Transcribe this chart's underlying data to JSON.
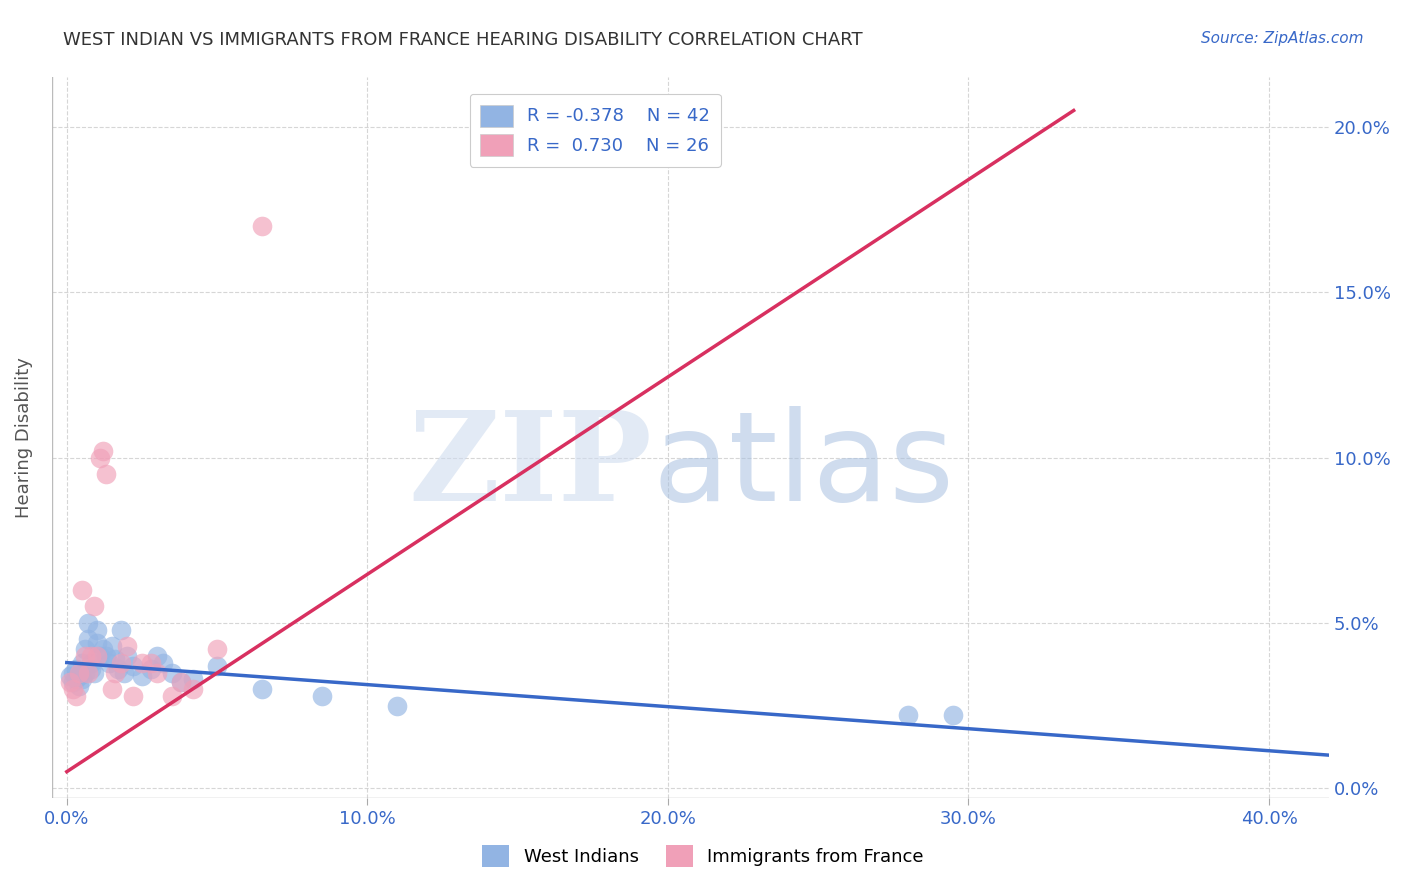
{
  "title": "WEST INDIAN VS IMMIGRANTS FROM FRANCE HEARING DISABILITY CORRELATION CHART",
  "source": "Source: ZipAtlas.com",
  "ylabel": "Hearing Disability",
  "x_tick_labels": [
    "0.0%",
    "10.0%",
    "20.0%",
    "30.0%",
    "40.0%"
  ],
  "x_tick_values": [
    0.0,
    0.1,
    0.2,
    0.3,
    0.4
  ],
  "y_tick_labels_right": [
    "0.0%",
    "5.0%",
    "10.0%",
    "15.0%",
    "20.0%"
  ],
  "y_tick_values": [
    0.0,
    0.05,
    0.1,
    0.15,
    0.2
  ],
  "xlim": [
    -0.005,
    0.42
  ],
  "ylim": [
    -0.003,
    0.215
  ],
  "blue_color": "#92b4e3",
  "pink_color": "#f0a0b8",
  "line_blue": "#3868c8",
  "line_pink": "#d83060",
  "blue_scatter_x": [
    0.001,
    0.002,
    0.002,
    0.003,
    0.003,
    0.004,
    0.004,
    0.005,
    0.005,
    0.006,
    0.006,
    0.007,
    0.007,
    0.008,
    0.008,
    0.009,
    0.01,
    0.01,
    0.011,
    0.012,
    0.013,
    0.014,
    0.015,
    0.016,
    0.017,
    0.018,
    0.019,
    0.02,
    0.022,
    0.025,
    0.028,
    0.03,
    0.032,
    0.035,
    0.038,
    0.042,
    0.05,
    0.065,
    0.085,
    0.11,
    0.28,
    0.295
  ],
  "blue_scatter_y": [
    0.034,
    0.032,
    0.035,
    0.033,
    0.036,
    0.031,
    0.034,
    0.033,
    0.038,
    0.042,
    0.035,
    0.05,
    0.045,
    0.036,
    0.038,
    0.035,
    0.048,
    0.044,
    0.04,
    0.042,
    0.04,
    0.038,
    0.043,
    0.039,
    0.036,
    0.048,
    0.035,
    0.04,
    0.037,
    0.034,
    0.036,
    0.04,
    0.038,
    0.035,
    0.032,
    0.033,
    0.037,
    0.03,
    0.028,
    0.025,
    0.022,
    0.022
  ],
  "pink_scatter_x": [
    0.001,
    0.002,
    0.003,
    0.004,
    0.005,
    0.006,
    0.007,
    0.008,
    0.009,
    0.01,
    0.011,
    0.012,
    0.013,
    0.015,
    0.016,
    0.018,
    0.02,
    0.022,
    0.025,
    0.028,
    0.03,
    0.035,
    0.038,
    0.042,
    0.05,
    0.065
  ],
  "pink_scatter_y": [
    0.032,
    0.03,
    0.028,
    0.035,
    0.06,
    0.04,
    0.035,
    0.04,
    0.055,
    0.04,
    0.1,
    0.102,
    0.095,
    0.03,
    0.035,
    0.038,
    0.043,
    0.028,
    0.038,
    0.038,
    0.035,
    0.028,
    0.032,
    0.03,
    0.042,
    0.17
  ],
  "blue_line_x": [
    0.0,
    0.42
  ],
  "blue_line_y_start": 0.038,
  "blue_line_y_end": 0.01,
  "pink_line_x": [
    0.0,
    0.335
  ],
  "pink_line_y_start": 0.005,
  "pink_line_y_end": 0.205,
  "legend_label1": "R = -0.378    N = 42",
  "legend_label2": "R =  0.730    N = 26",
  "bottom_label1": "West Indians",
  "bottom_label2": "Immigrants from France"
}
